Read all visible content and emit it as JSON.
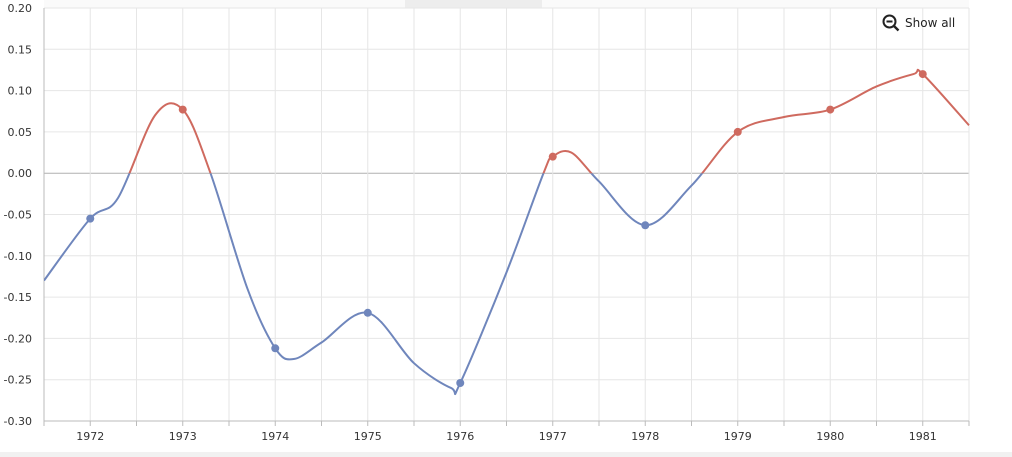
{
  "controls": {
    "show_all_label": "Show all",
    "zoom_out_icon": "zoom-out-icon"
  },
  "colors": {
    "negative": "#6f86bc",
    "positive": "#cf6a5f",
    "grid": "#e6e6e6",
    "zero_line": "#b0b0b0",
    "axis": "#bbbbbb"
  },
  "chart_data": {
    "type": "line",
    "title": "",
    "xlabel": "",
    "ylabel": "",
    "x": [
      1971.5,
      1972,
      1972.3,
      1972.7,
      1973,
      1973.3,
      1973.7,
      1974,
      1974.2,
      1974.5,
      1975,
      1975.5,
      1975.9,
      1976,
      1976.5,
      1976.9,
      1977,
      1977.2,
      1977.5,
      1978,
      1978.5,
      1979,
      1979.5,
      1980,
      1980.5,
      1980.9,
      1981,
      1981.5
    ],
    "values": [
      -0.13,
      -0.055,
      -0.03,
      0.07,
      0.077,
      0.0,
      -0.14,
      -0.212,
      -0.225,
      -0.205,
      -0.169,
      -0.23,
      -0.26,
      -0.254,
      -0.12,
      0.0,
      0.02,
      0.025,
      -0.01,
      -0.063,
      -0.015,
      0.05,
      0.068,
      0.077,
      0.105,
      0.12,
      0.12,
      0.058
    ],
    "markers": {
      "x": [
        1972,
        1973,
        1974,
        1975,
        1976,
        1977,
        1978,
        1979,
        1980,
        1981
      ],
      "values": [
        -0.055,
        0.077,
        -0.212,
        -0.169,
        -0.254,
        0.02,
        -0.063,
        0.05,
        0.077,
        0.12
      ]
    },
    "xlim": [
      1971.5,
      1981.5
    ],
    "ylim": [
      -0.3,
      0.2
    ],
    "x_ticks": [
      "1972",
      "1973",
      "1974",
      "1975",
      "1976",
      "1977",
      "1978",
      "1979",
      "1980",
      "1981"
    ],
    "y_ticks": [
      "0.20",
      "0.15",
      "0.10",
      "0.05",
      "0.00",
      "-0.05",
      "-0.10",
      "-0.15",
      "-0.20",
      "-0.25",
      "-0.30"
    ],
    "threshold": 0,
    "grid": true,
    "legend": "none"
  }
}
